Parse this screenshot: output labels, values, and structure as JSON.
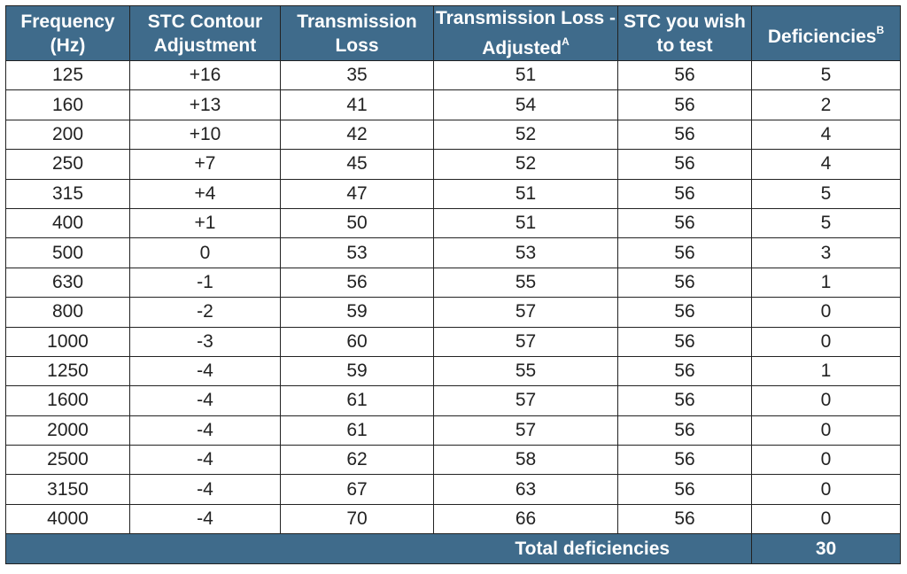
{
  "table": {
    "header": [
      {
        "text": "Frequency (Hz)"
      },
      {
        "text": "STC Contour Adjustment"
      },
      {
        "text": "Transmission Loss"
      },
      {
        "text": "Transmission Loss - Adjusted",
        "sup": "A"
      },
      {
        "text": "STC you wish to test"
      },
      {
        "text": "Deficiencies",
        "sup": "B"
      }
    ],
    "rows": [
      [
        "125",
        "+16",
        "35",
        "51",
        "56",
        "5"
      ],
      [
        "160",
        "+13",
        "41",
        "54",
        "56",
        "2"
      ],
      [
        "200",
        "+10",
        "42",
        "52",
        "56",
        "4"
      ],
      [
        "250",
        "+7",
        "45",
        "52",
        "56",
        "4"
      ],
      [
        "315",
        "+4",
        "47",
        "51",
        "56",
        "5"
      ],
      [
        "400",
        "+1",
        "50",
        "51",
        "56",
        "5"
      ],
      [
        "500",
        "0",
        "53",
        "53",
        "56",
        "3"
      ],
      [
        "630",
        "-1",
        "56",
        "55",
        "56",
        "1"
      ],
      [
        "800",
        "-2",
        "59",
        "57",
        "56",
        "0"
      ],
      [
        "1000",
        "-3",
        "60",
        "57",
        "56",
        "0"
      ],
      [
        "1250",
        "-4",
        "59",
        "55",
        "56",
        "1"
      ],
      [
        "1600",
        "-4",
        "61",
        "57",
        "56",
        "0"
      ],
      [
        "2000",
        "-4",
        "61",
        "57",
        "56",
        "0"
      ],
      [
        "2500",
        "-4",
        "62",
        "58",
        "56",
        "0"
      ],
      [
        "3150",
        "-4",
        "67",
        "63",
        "56",
        "0"
      ],
      [
        "4000",
        "-4",
        "70",
        "66",
        "56",
        "0"
      ]
    ],
    "footer": {
      "label": "Total deficiencies",
      "total": "30"
    }
  }
}
